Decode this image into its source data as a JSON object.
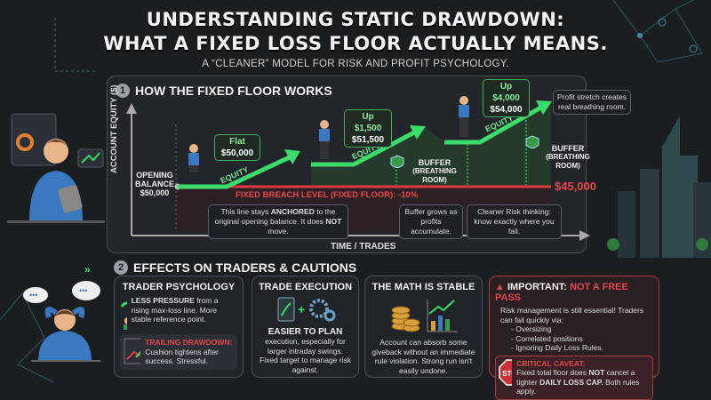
{
  "header": {
    "title_line1": "UNDERSTANDING STATIC DRAWDOWN:",
    "title_line2": "WHAT A FIXED LOSS FLOOR ACTUALLY MEANS.",
    "subtitle": "A “CLEANER” MODEL FOR RISK AND PROFIT PSYCHOLOGY."
  },
  "section1": {
    "number": "1",
    "title": "HOW THE FIXED FLOOR WORKS",
    "y_axis_label": "ACCOUNT EQUITY ($)",
    "x_axis_label": "TIME / TRADES",
    "opening": {
      "line1": "OPENING",
      "line2": "BALANCE",
      "value": "$50,000"
    },
    "floor_label": "FIXED BREACH LEVEL (FIXED FLOOR): -10%",
    "floor_value": "$45,000",
    "equity_label": "EQUITY",
    "callouts": [
      {
        "line1": "Flat",
        "line2": "$50,000"
      },
      {
        "line1": "Up $1,500",
        "line2": "$51,500"
      },
      {
        "line1": "Up $4,000",
        "line2": "$54,000"
      }
    ],
    "profit_note": "Profit stretch creates real breathing room.",
    "anchored_note_pre": "This line stays ",
    "anchored_note_bold": "ANCHORED",
    "anchored_note_mid": " to the original opening balance. It does ",
    "anchored_note_bold2": "NOT",
    "anchored_note_post": " move.",
    "buffer_label": "BUFFER",
    "buffer_sub": "(BREATHING ROOM)",
    "buffer_note": "Buffer grows as profits accumulate.",
    "cleaner_note": "Cleaner Risk thinking: know exactly where you fail.",
    "colors": {
      "equity": "#3ddc6a",
      "floor": "#e03a3e"
    }
  },
  "section2": {
    "number": "2",
    "title": "EFFECTS ON TRADERS & CAUTIONS",
    "psychology": {
      "title": "TRADER PSYCHOLOGY",
      "bold": "LESS PRESSURE",
      "text": " from a rising max-loss line. More stable reference point.",
      "trailing_title": "TRAILING DRAWDOWN:",
      "trailing_text": "Cushion tightens after success. Stressful."
    },
    "execution": {
      "title": "TRADE EXECUTION",
      "bold": "EASIER TO PLAN",
      "text": "execution, especially for larger intraday swings. Fixed target to manage risk against."
    },
    "math": {
      "title": "THE MATH IS STABLE",
      "text": "Account can absorb some giveback without an immediate rule violation. Strong run isn't easily undone."
    },
    "important": {
      "title": "IMPORTANT: ",
      "title_red": "NOT A FREE PASS",
      "bullet": "Risk management is still essential! Traders can fail quickly via:",
      "items": [
        "- Oversizing",
        "- Correlated positions",
        "- Ignoring Daily Loss Rules."
      ],
      "stop_sign": "STOP",
      "caveat_title": "CRITICAL CAVEAT:",
      "caveat_pre": "Fixed total floor does ",
      "caveat_bold": "NOT",
      "caveat_mid": " cancel a tighter ",
      "caveat_bold2": "DAILY LOSS CAP.",
      "caveat_post": " Both rules apply."
    }
  }
}
